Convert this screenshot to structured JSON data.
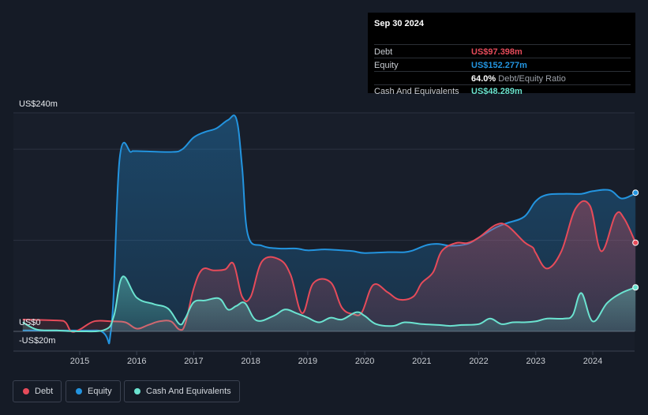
{
  "tooltip": {
    "date": "Sep 30 2024",
    "debt_label": "Debt",
    "debt_value": "US$97.398m",
    "equity_label": "Equity",
    "equity_value": "US$152.277m",
    "ratio_value": "64.0%",
    "ratio_label": "Debt/Equity Ratio",
    "cash_label": "Cash And Equivalents",
    "cash_value": "US$48.289m"
  },
  "legend": {
    "debt": "Debt",
    "equity": "Equity",
    "cash": "Cash And Equivalents"
  },
  "colors": {
    "debt": "#e64b5a",
    "equity": "#2394df",
    "cash": "#6be3d0",
    "background": "#151b26"
  },
  "chart_data": {
    "type": "area",
    "title": "",
    "xlabel": "",
    "ylabel": "",
    "y_unit_labels": {
      "top": "US$240m",
      "zero": "US$0",
      "bottom": "-US$20m"
    },
    "ylim": [
      -20,
      240
    ],
    "x_ticks": [
      2015,
      2016,
      2017,
      2018,
      2019,
      2020,
      2021,
      2022,
      2023,
      2024
    ],
    "series": [
      {
        "name": "Equity",
        "key": "equity",
        "points": [
          [
            2014.0,
            1
          ],
          [
            2015.3,
            1
          ],
          [
            2015.55,
            2
          ],
          [
            2015.7,
            190
          ],
          [
            2015.9,
            197
          ],
          [
            2016.0,
            198
          ],
          [
            2016.6,
            197
          ],
          [
            2016.8,
            200
          ],
          [
            2017.0,
            213
          ],
          [
            2017.2,
            219
          ],
          [
            2017.4,
            223
          ],
          [
            2017.6,
            232
          ],
          [
            2017.75,
            233
          ],
          [
            2017.85,
            180
          ],
          [
            2017.95,
            106
          ],
          [
            2018.2,
            94
          ],
          [
            2018.5,
            91
          ],
          [
            2018.8,
            91
          ],
          [
            2019.0,
            89
          ],
          [
            2019.3,
            90
          ],
          [
            2019.6,
            89
          ],
          [
            2019.8,
            88
          ],
          [
            2020.0,
            86
          ],
          [
            2020.4,
            87
          ],
          [
            2020.7,
            87
          ],
          [
            2020.85,
            89
          ],
          [
            2021.1,
            95
          ],
          [
            2021.3,
            96
          ],
          [
            2021.5,
            94
          ],
          [
            2021.8,
            96
          ],
          [
            2022.0,
            103
          ],
          [
            2022.3,
            114
          ],
          [
            2022.5,
            119
          ],
          [
            2022.8,
            126
          ],
          [
            2023.0,
            143
          ],
          [
            2023.2,
            150
          ],
          [
            2023.5,
            151
          ],
          [
            2023.8,
            151
          ],
          [
            2024.0,
            154
          ],
          [
            2024.3,
            155
          ],
          [
            2024.5,
            146
          ],
          [
            2024.7,
            150
          ],
          [
            2024.75,
            152.3
          ]
        ]
      },
      {
        "name": "Debt",
        "key": "debt",
        "points": [
          [
            2014.0,
            13
          ],
          [
            2014.6,
            12
          ],
          [
            2014.75,
            10
          ],
          [
            2014.85,
            0
          ],
          [
            2015.0,
            2
          ],
          [
            2015.25,
            11
          ],
          [
            2015.55,
            11
          ],
          [
            2015.8,
            10
          ],
          [
            2016.0,
            3
          ],
          [
            2016.2,
            7
          ],
          [
            2016.4,
            11
          ],
          [
            2016.6,
            11
          ],
          [
            2016.75,
            2
          ],
          [
            2016.85,
            8
          ],
          [
            2017.0,
            47
          ],
          [
            2017.15,
            68
          ],
          [
            2017.35,
            67
          ],
          [
            2017.55,
            68
          ],
          [
            2017.7,
            74
          ],
          [
            2017.85,
            38
          ],
          [
            2018.0,
            38
          ],
          [
            2018.2,
            77
          ],
          [
            2018.5,
            79
          ],
          [
            2018.7,
            62
          ],
          [
            2018.9,
            20
          ],
          [
            2019.1,
            53
          ],
          [
            2019.4,
            54
          ],
          [
            2019.6,
            26
          ],
          [
            2019.8,
            19
          ],
          [
            2019.95,
            21
          ],
          [
            2020.15,
            51
          ],
          [
            2020.4,
            43
          ],
          [
            2020.6,
            35
          ],
          [
            2020.85,
            38
          ],
          [
            2021.0,
            53
          ],
          [
            2021.2,
            65
          ],
          [
            2021.35,
            88
          ],
          [
            2021.6,
            97
          ],
          [
            2021.8,
            97
          ],
          [
            2022.0,
            103
          ],
          [
            2022.3,
            117
          ],
          [
            2022.5,
            116
          ],
          [
            2022.8,
            98
          ],
          [
            2022.95,
            92
          ],
          [
            2023.0,
            86
          ],
          [
            2023.2,
            69
          ],
          [
            2023.45,
            88
          ],
          [
            2023.7,
            135
          ],
          [
            2023.95,
            138
          ],
          [
            2024.15,
            88
          ],
          [
            2024.4,
            128
          ],
          [
            2024.55,
            124
          ],
          [
            2024.75,
            97.4
          ]
        ]
      },
      {
        "name": "Cash And Equivalents",
        "key": "cash",
        "points": [
          [
            2014.0,
            10
          ],
          [
            2014.25,
            2
          ],
          [
            2014.6,
            1
          ],
          [
            2015.0,
            0
          ],
          [
            2015.45,
            2
          ],
          [
            2015.6,
            17
          ],
          [
            2015.75,
            60
          ],
          [
            2016.0,
            37
          ],
          [
            2016.3,
            30
          ],
          [
            2016.55,
            25
          ],
          [
            2016.75,
            8
          ],
          [
            2016.85,
            14
          ],
          [
            2017.0,
            32
          ],
          [
            2017.2,
            34
          ],
          [
            2017.45,
            36
          ],
          [
            2017.6,
            24
          ],
          [
            2017.75,
            28
          ],
          [
            2017.9,
            31
          ],
          [
            2018.1,
            12
          ],
          [
            2018.4,
            17
          ],
          [
            2018.6,
            24
          ],
          [
            2018.8,
            20
          ],
          [
            2019.0,
            15
          ],
          [
            2019.2,
            10
          ],
          [
            2019.4,
            15
          ],
          [
            2019.6,
            13
          ],
          [
            2019.85,
            21
          ],
          [
            2020.0,
            17
          ],
          [
            2020.2,
            8
          ],
          [
            2020.5,
            6
          ],
          [
            2020.7,
            10
          ],
          [
            2021.0,
            8
          ],
          [
            2021.3,
            7
          ],
          [
            2021.5,
            6
          ],
          [
            2021.7,
            7
          ],
          [
            2022.0,
            8
          ],
          [
            2022.2,
            14
          ],
          [
            2022.4,
            8
          ],
          [
            2022.6,
            10
          ],
          [
            2022.8,
            10
          ],
          [
            2023.0,
            11
          ],
          [
            2023.2,
            14
          ],
          [
            2023.5,
            14
          ],
          [
            2023.65,
            18
          ],
          [
            2023.8,
            42
          ],
          [
            2024.0,
            11
          ],
          [
            2024.25,
            31
          ],
          [
            2024.5,
            42
          ],
          [
            2024.75,
            48.3
          ]
        ]
      }
    ]
  }
}
